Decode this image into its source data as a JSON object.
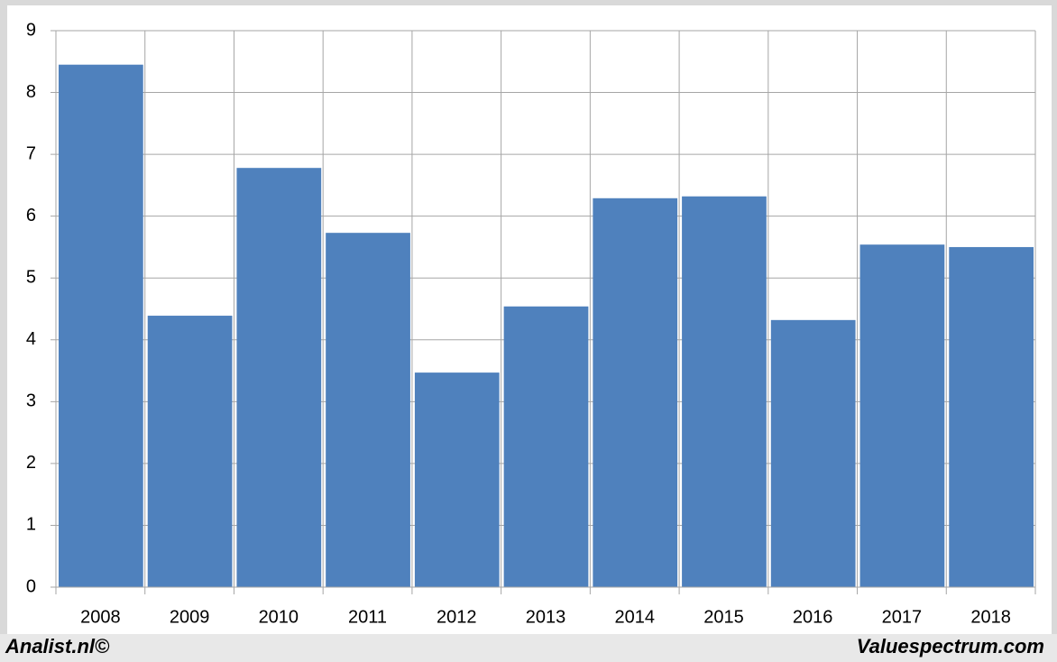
{
  "chart_data": {
    "type": "bar",
    "categories": [
      "2008",
      "2009",
      "2010",
      "2011",
      "2012",
      "2013",
      "2014",
      "2015",
      "2016",
      "2017",
      "2018"
    ],
    "values": [
      8.45,
      4.39,
      6.78,
      5.73,
      3.47,
      4.54,
      6.29,
      6.32,
      4.32,
      5.54,
      5.5
    ],
    "color": "#4f81bd",
    "ylim": [
      0,
      9
    ],
    "yticks": [
      0,
      1,
      2,
      3,
      4,
      5,
      6,
      7,
      8,
      9
    ],
    "grid": true,
    "credits": [
      "Analist.nl©",
      "Valuespectrum.com"
    ]
  }
}
